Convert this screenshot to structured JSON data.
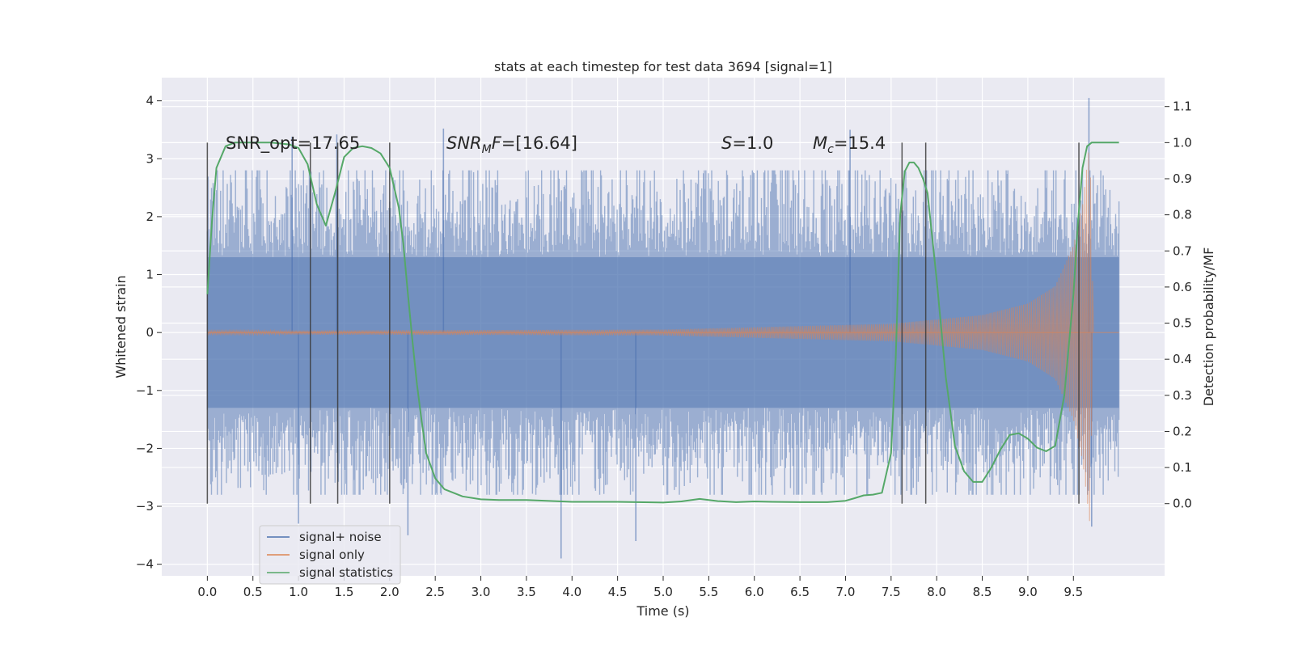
{
  "chart_data": {
    "type": "line",
    "title": "stats at each timestep for test data 3694 [signal=1]",
    "xlabel": "Time (s)",
    "ylabel": "Whitened strain",
    "ylabel_right": "Detection probability/MF",
    "xlim": [
      -0.5,
      10.5
    ],
    "ylim": [
      -4.2,
      4.4
    ],
    "ylim_right": [
      -0.2,
      1.18
    ],
    "x_ticks": [
      0.0,
      0.5,
      1.0,
      1.5,
      2.0,
      2.5,
      3.0,
      3.5,
      4.0,
      4.5,
      5.0,
      5.5,
      6.0,
      6.5,
      7.0,
      7.5,
      8.0,
      8.5,
      9.0,
      9.5
    ],
    "x_tick_labels": [
      "0.0",
      "0.5",
      "1.0",
      "1.5",
      "2.0",
      "2.5",
      "3.0",
      "3.5",
      "4.0",
      "4.5",
      "5.0",
      "5.5",
      "6.0",
      "6.5",
      "7.0",
      "7.5",
      "8.0",
      "8.5",
      "9.0",
      "9.5"
    ],
    "y_ticks": [
      -4,
      -3,
      -2,
      -1,
      0,
      1,
      2,
      3,
      4
    ],
    "y_tick_labels": [
      "−4",
      "−3",
      "−2",
      "−1",
      "0",
      "1",
      "2",
      "3",
      "4"
    ],
    "y_ticks_right": [
      0.0,
      0.1,
      0.2,
      0.3,
      0.4,
      0.5,
      0.6,
      0.7,
      0.8,
      0.9,
      1.0,
      1.1
    ],
    "y_tick_labels_right": [
      "0.0",
      "0.1",
      "0.2",
      "0.3",
      "0.4",
      "0.5",
      "0.6",
      "0.7",
      "0.8",
      "0.9",
      "1.0",
      "1.1"
    ],
    "grid": true,
    "legend_position": "lower-left",
    "annotations": {
      "snr_opt": "SNR_opt=17.65",
      "snr_mf_main": "SNR",
      "snr_mf_sub": "M",
      "snr_mf_tail": "F",
      "snr_mf_value": "=[16.64]",
      "s_label": "S",
      "s_value": "=1.0",
      "mc_label": "M",
      "mc_sub": "c",
      "mc_value": "=15.4"
    },
    "series": [
      {
        "name": "signal+ noise",
        "color": "#4c72b0",
        "axis": "left",
        "time_range": [
          0.0,
          10.0
        ],
        "envelope_abs": 1.3,
        "typical_peak_abs": 2.8,
        "max": 4.05,
        "min": -3.9
      },
      {
        "name": "signal only",
        "color": "#dd8452",
        "axis": "left",
        "description_points": [
          {
            "t": 0.0,
            "amp": 0.03
          },
          {
            "t": 5.0,
            "amp": 0.05
          },
          {
            "t": 7.5,
            "amp": 0.15
          },
          {
            "t": 8.5,
            "amp": 0.3
          },
          {
            "t": 9.0,
            "amp": 0.5
          },
          {
            "t": 9.3,
            "amp": 0.8
          },
          {
            "t": 9.5,
            "amp": 1.5
          },
          {
            "t": 9.6,
            "amp": 2.2
          },
          {
            "t": 9.68,
            "amp": 3.3
          },
          {
            "t": 9.72,
            "amp": 0.0
          }
        ]
      },
      {
        "name": "signal statistics",
        "color": "#55a868",
        "axis": "right",
        "x": [
          0.0,
          0.05,
          0.1,
          0.2,
          0.3,
          0.5,
          0.7,
          0.9,
          1.0,
          1.1,
          1.2,
          1.3,
          1.4,
          1.5,
          1.6,
          1.7,
          1.8,
          1.9,
          2.0,
          2.1,
          2.15,
          2.2,
          2.25,
          2.3,
          2.35,
          2.4,
          2.5,
          2.6,
          2.8,
          3.0,
          3.2,
          3.5,
          4.0,
          4.5,
          5.0,
          5.2,
          5.4,
          5.6,
          5.8,
          6.0,
          6.2,
          6.5,
          6.8,
          7.0,
          7.1,
          7.2,
          7.3,
          7.4,
          7.5,
          7.55,
          7.6,
          7.65,
          7.7,
          7.75,
          7.8,
          7.85,
          7.9,
          8.0,
          8.1,
          8.2,
          8.3,
          8.4,
          8.5,
          8.6,
          8.7,
          8.8,
          8.9,
          9.0,
          9.1,
          9.2,
          9.3,
          9.4,
          9.5,
          9.55,
          9.6,
          9.65,
          9.7,
          9.8,
          9.9,
          10.0
        ],
        "values": [
          0.58,
          0.78,
          0.93,
          0.99,
          1.0,
          1.0,
          1.0,
          0.995,
          0.985,
          0.94,
          0.83,
          0.77,
          0.86,
          0.96,
          0.985,
          0.99,
          0.985,
          0.97,
          0.93,
          0.82,
          0.72,
          0.58,
          0.45,
          0.33,
          0.23,
          0.14,
          0.07,
          0.04,
          0.02,
          0.012,
          0.01,
          0.01,
          0.005,
          0.005,
          0.003,
          0.006,
          0.013,
          0.007,
          0.004,
          0.006,
          0.005,
          0.004,
          0.004,
          0.008,
          0.015,
          0.023,
          0.025,
          0.03,
          0.14,
          0.4,
          0.8,
          0.92,
          0.945,
          0.945,
          0.93,
          0.9,
          0.86,
          0.62,
          0.35,
          0.16,
          0.09,
          0.06,
          0.06,
          0.1,
          0.15,
          0.19,
          0.195,
          0.18,
          0.155,
          0.145,
          0.16,
          0.3,
          0.58,
          0.78,
          0.93,
          0.99,
          1.0,
          1.0,
          1.0,
          1.0
        ]
      }
    ],
    "vertical_marker_lines_x": [
      0.0,
      1.13,
      1.43,
      2.0,
      7.62,
      7.88,
      9.56
    ]
  }
}
